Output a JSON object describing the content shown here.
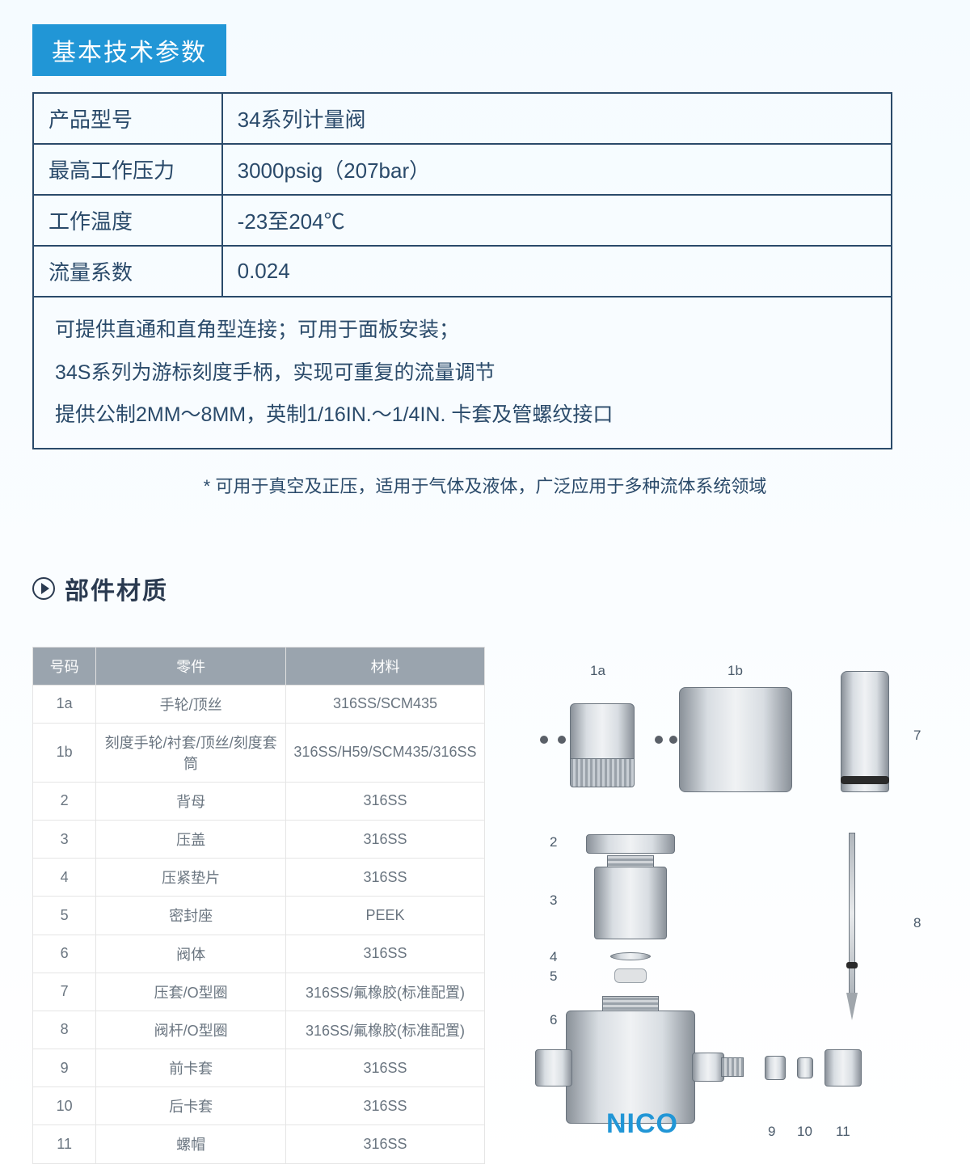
{
  "header1": "基本技术参数",
  "spec_table": {
    "rows": [
      {
        "label": "产品型号",
        "value": "34系列计量阀"
      },
      {
        "label": "最高工作压力",
        "value": "3000psig（207bar）"
      },
      {
        "label": "工作温度",
        "value": "-23至204℃"
      },
      {
        "label": "流量系数",
        "value": "0.024"
      }
    ],
    "notes_line1": "可提供直通和直角型连接；可用于面板安装；",
    "notes_line2": "34S系列为游标刻度手柄，实现可重复的流量调节",
    "notes_line3": "提供公制2MM～8MM，英制1/16IN.～1/4IN. 卡套及管螺纹接口"
  },
  "footnote": "* 可用于真空及正压，适用于气体及液体，广泛应用于多种流体系统领域",
  "header2": "部件材质",
  "parts_table": {
    "columns": [
      "号码",
      "零件",
      "材料"
    ],
    "rows": [
      [
        "1a",
        "手轮/顶丝",
        "316SS/SCM435"
      ],
      [
        "1b",
        "刻度手轮/衬套/顶丝/刻度套筒",
        "316SS/H59/SCM435/316SS"
      ],
      [
        "2",
        "背母",
        "316SS"
      ],
      [
        "3",
        "压盖",
        "316SS"
      ],
      [
        "4",
        "压紧垫片",
        "316SS"
      ],
      [
        "5",
        "密封座",
        "PEEK"
      ],
      [
        "6",
        "阀体",
        "316SS"
      ],
      [
        "7",
        "压套/O型圈",
        "316SS/氟橡胶(标准配置)"
      ],
      [
        "8",
        "阀杆/O型圈",
        "316SS/氟橡胶(标准配置)"
      ],
      [
        "9",
        "前卡套",
        "316SS"
      ],
      [
        "10",
        "后卡套",
        "316SS"
      ],
      [
        "11",
        "螺帽",
        "316SS"
      ]
    ]
  },
  "diagram_labels": {
    "l1a": "1a",
    "l1b": "1b",
    "l2": "2",
    "l3": "3",
    "l4": "4",
    "l5": "5",
    "l6": "6",
    "l7": "7",
    "l8": "8",
    "l9": "9",
    "l10": "10",
    "l11": "11"
  },
  "logo": "NICO",
  "colors": {
    "header_bg": "#2196d6",
    "border": "#2a4a6a",
    "table_head": "#9aa4ae",
    "text": "#2a4a6a"
  }
}
